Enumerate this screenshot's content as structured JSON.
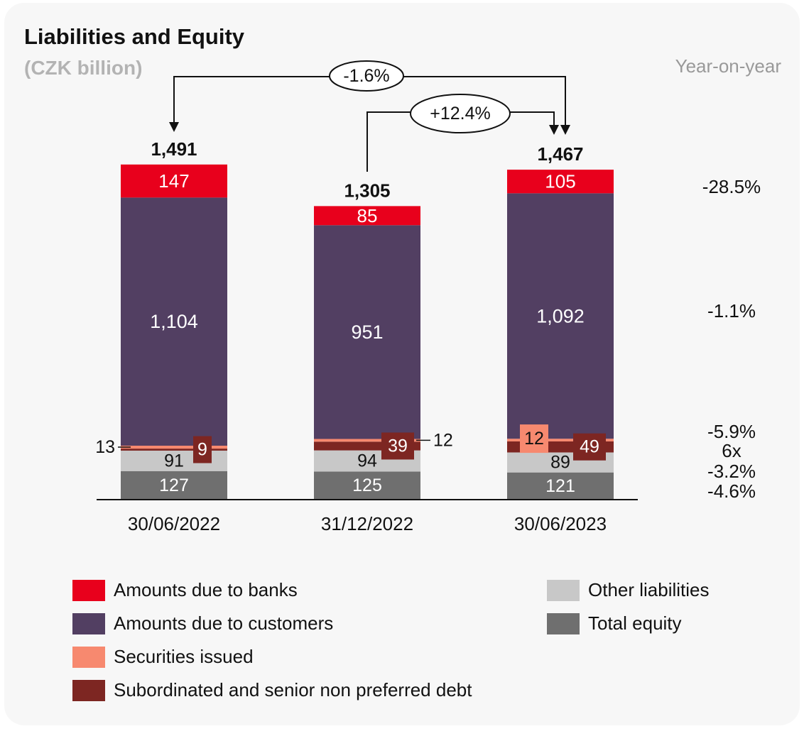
{
  "header": {
    "title": "Liabilities and Equity",
    "subtitle": "(CZK billion)",
    "yoy_label": "Year-on-year"
  },
  "colors": {
    "banks": "#e8001c",
    "customers": "#523f62",
    "securities": "#f7896f",
    "subordinated": "#7d2622",
    "other": "#c8c8c8",
    "equity": "#6f6f6f"
  },
  "chart_data": {
    "type": "bar",
    "stacked": true,
    "categories": [
      "30/06/2022",
      "31/12/2022",
      "30/06/2023"
    ],
    "totals": [
      "1,491",
      "1,305",
      "1,467"
    ],
    "series": [
      {
        "key": "equity",
        "name": "Total equity",
        "values": [
          127,
          125,
          121
        ],
        "labels": [
          "127",
          "125",
          "121"
        ],
        "yoy": "-4.6%"
      },
      {
        "key": "other",
        "name": "Other liabilities",
        "values": [
          91,
          94,
          89
        ],
        "labels": [
          "91",
          "94",
          "89"
        ],
        "yoy": "-3.2%"
      },
      {
        "key": "subordinated",
        "name": "Subordinated and senior non preferred debt",
        "values": [
          9,
          39,
          49
        ],
        "labels": [
          "9",
          "39",
          "49"
        ],
        "yoy": "6x"
      },
      {
        "key": "securities",
        "name": "Securities issued",
        "values": [
          13,
          12,
          12
        ],
        "labels": [
          "13",
          "12",
          "12"
        ],
        "yoy": "-5.9%"
      },
      {
        "key": "customers",
        "name": "Amounts due to customers",
        "values": [
          1104,
          951,
          1092
        ],
        "labels": [
          "1,104",
          "951",
          "1,092"
        ],
        "yoy": "-1.1%"
      },
      {
        "key": "banks",
        "name": "Amounts due to banks",
        "values": [
          147,
          85,
          105
        ],
        "labels": [
          "147",
          "85",
          "105"
        ],
        "yoy": "-28.5%"
      }
    ],
    "changes": [
      {
        "from": "30/06/2022",
        "to": "30/06/2023",
        "label": "-1.6%"
      },
      {
        "from": "31/12/2022",
        "to": "30/06/2023",
        "label": "+12.4%"
      }
    ],
    "legend": "bottom"
  }
}
